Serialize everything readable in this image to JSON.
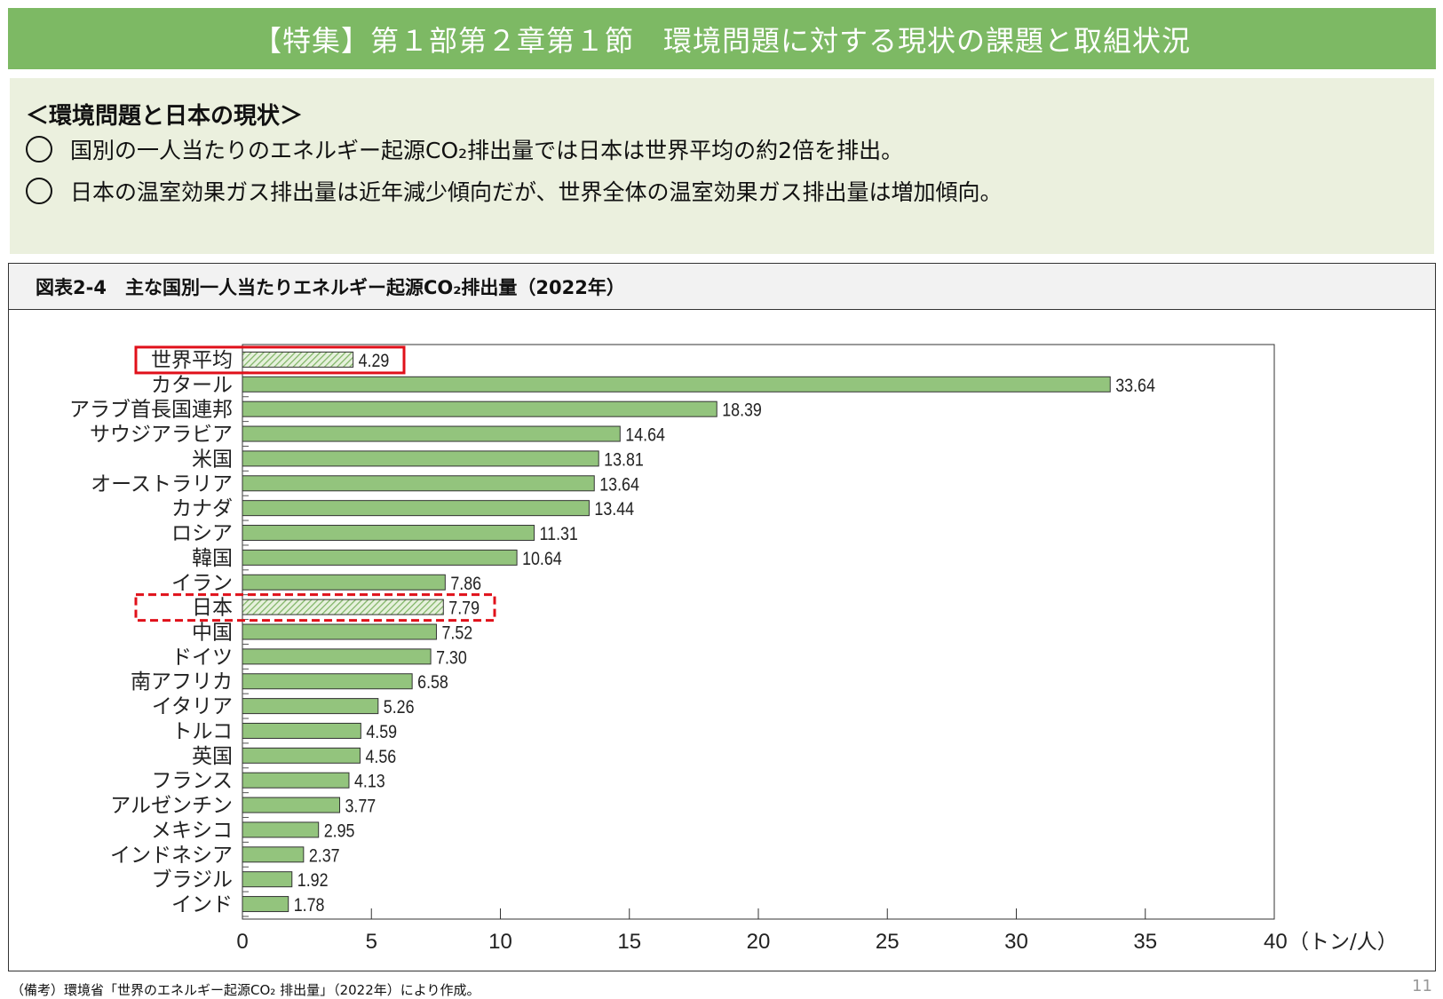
{
  "header": {
    "title": "【特集】第１部第２章第１節　環境問題に対する現状の課題と取組状況"
  },
  "summary": {
    "heading": "＜環境問題と日本の現状＞",
    "bullets": [
      "国別の一人当たりのエネルギー起源CO₂排出量では日本は世界平均の約2倍を排出。",
      "日本の温室効果ガス排出量は近年減少傾向だが、世界全体の温室効果ガス排出量は増加傾向。"
    ]
  },
  "chart_title": "図表2-4　主な国別一人当たりエネルギー起源CO₂排出量（2022年）",
  "footnote": "（備考）環境省「世界のエネルギー起源CO₂ 排出量」（2022年）により作成。",
  "page_number": "11",
  "colors": {
    "header": "#7db964",
    "summary_bg": "#ebf0de",
    "bar": "#93c47d",
    "highlight": "#e0101a"
  },
  "chart_data": {
    "type": "bar",
    "orientation": "horizontal",
    "categories": [
      "世界平均",
      "カタール",
      "アラブ首長国連邦",
      "サウジアラビア",
      "米国",
      "オーストラリア",
      "カナダ",
      "ロシア",
      "韓国",
      "イラン",
      "日本",
      "中国",
      "ドイツ",
      "南アフリカ",
      "イタリア",
      "トルコ",
      "英国",
      "フランス",
      "アルゼンチン",
      "メキシコ",
      "インドネシア",
      "ブラジル",
      "インド"
    ],
    "values": [
      4.29,
      33.64,
      18.39,
      14.64,
      13.81,
      13.64,
      13.44,
      11.31,
      10.64,
      7.86,
      7.79,
      7.52,
      7.3,
      6.58,
      5.26,
      4.59,
      4.56,
      4.13,
      3.77,
      2.95,
      2.37,
      1.92,
      1.78
    ],
    "value_labels": [
      "4.29",
      "33.64",
      "18.39",
      "14.64",
      "13.81",
      "13.64",
      "13.44",
      "11.31",
      "10.64",
      "7.86",
      "7.79",
      "7.52",
      "7.30",
      "6.58",
      "5.26",
      "4.59",
      "4.56",
      "4.13",
      "3.77",
      "2.95",
      "2.37",
      "1.92",
      "1.78"
    ],
    "hatched": [
      "世界平均",
      "日本"
    ],
    "highlight_solid": "世界平均",
    "highlight_dashed": "日本",
    "xlim": [
      0,
      40
    ],
    "xticks": [
      "0",
      "5",
      "10",
      "15",
      "20",
      "25",
      "30",
      "35",
      "40"
    ],
    "xlabel": "（トン/人）",
    "grid": false
  }
}
